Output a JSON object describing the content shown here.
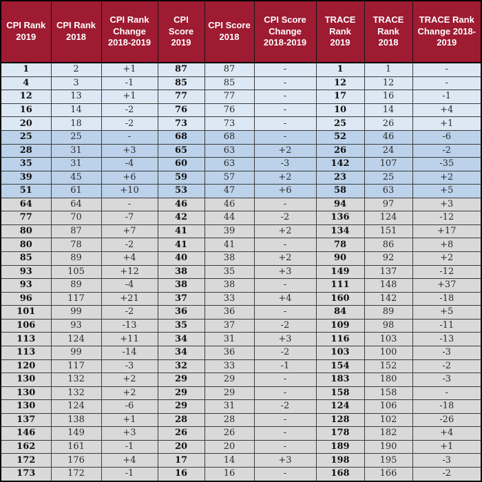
{
  "colors": {
    "header_bg": "#9e1b32",
    "header_text": "#ffffff",
    "band_blue_light": "#dce8f4",
    "band_blue_mid": "#bcd2ea",
    "band_gray": "#d9d9d9",
    "grid_border": "#3a3a3a",
    "outer_border": "#000000",
    "body_text": "#2a2a2a"
  },
  "chart_data": {
    "type": "table",
    "columns": [
      "CPI Rank 2019",
      "CPI Rank 2018",
      "CPI Rank Change 2018-2019",
      "CPI Score 2019",
      "CPI Score 2018",
      "CPI Score Change 2018-2019",
      "TRACE Rank 2019",
      "TRACE Rank 2018",
      "TRACE Rank Change 2018-2019"
    ],
    "rows": [
      [
        "1",
        "2",
        "+1",
        "87",
        "87",
        "-",
        "1",
        "1",
        "-"
      ],
      [
        "4",
        "3",
        "-1",
        "85",
        "85",
        "-",
        "12",
        "12",
        "-"
      ],
      [
        "12",
        "13",
        "+1",
        "77",
        "77",
        "-",
        "17",
        "16",
        "-1"
      ],
      [
        "16",
        "14",
        "-2",
        "76",
        "76",
        "-",
        "10",
        "14",
        "+4"
      ],
      [
        "20",
        "18",
        "-2",
        "73",
        "73",
        "-",
        "25",
        "26",
        "+1"
      ],
      [
        "25",
        "25",
        "-",
        "68",
        "68",
        "-",
        "52",
        "46",
        "-6"
      ],
      [
        "28",
        "31",
        "+3",
        "65",
        "63",
        "+2",
        "26",
        "24",
        "-2"
      ],
      [
        "35",
        "31",
        "-4",
        "60",
        "63",
        "-3",
        "142",
        "107",
        "-35"
      ],
      [
        "39",
        "45",
        "+6",
        "59",
        "57",
        "+2",
        "23",
        "25",
        "+2"
      ],
      [
        "51",
        "61",
        "+10",
        "53",
        "47",
        "+6",
        "58",
        "63",
        "+5"
      ],
      [
        "64",
        "64",
        "-",
        "46",
        "46",
        "-",
        "94",
        "97",
        "+3"
      ],
      [
        "77",
        "70",
        "-7",
        "42",
        "44",
        "-2",
        "136",
        "124",
        "-12"
      ],
      [
        "80",
        "87",
        "+7",
        "41",
        "39",
        "+2",
        "134",
        "151",
        "+17"
      ],
      [
        "80",
        "78",
        "-2",
        "41",
        "41",
        "-",
        "78",
        "86",
        "+8"
      ],
      [
        "85",
        "89",
        "+4",
        "40",
        "38",
        "+2",
        "90",
        "92",
        "+2"
      ],
      [
        "93",
        "105",
        "+12",
        "38",
        "35",
        "+3",
        "149",
        "137",
        "-12"
      ],
      [
        "93",
        "89",
        "-4",
        "38",
        "38",
        "-",
        "111",
        "148",
        "+37"
      ],
      [
        "96",
        "117",
        "+21",
        "37",
        "33",
        "+4",
        "160",
        "142",
        "-18"
      ],
      [
        "101",
        "99",
        "-2",
        "36",
        "36",
        "-",
        "84",
        "89",
        "+5"
      ],
      [
        "106",
        "93",
        "-13",
        "35",
        "37",
        "-2",
        "109",
        "98",
        "-11"
      ],
      [
        "113",
        "124",
        "+11",
        "34",
        "31",
        "+3",
        "116",
        "103",
        "-13"
      ],
      [
        "113",
        "99",
        "-14",
        "34",
        "36",
        "-2",
        "103",
        "100",
        "-3"
      ],
      [
        "120",
        "117",
        "-3",
        "32",
        "33",
        "-1",
        "154",
        "152",
        "-2"
      ],
      [
        "130",
        "132",
        "+2",
        "29",
        "29",
        "-",
        "183",
        "180",
        "-3"
      ],
      [
        "130",
        "132",
        "+2",
        "29",
        "29",
        "-",
        "158",
        "158",
        "-"
      ],
      [
        "130",
        "124",
        "-6",
        "29",
        "31",
        "-2",
        "124",
        "106",
        "-18"
      ],
      [
        "137",
        "138",
        "+1",
        "28",
        "28",
        "-",
        "128",
        "102",
        "-26"
      ],
      [
        "146",
        "149",
        "+3",
        "26",
        "26",
        "-",
        "178",
        "182",
        "+4"
      ],
      [
        "162",
        "161",
        "-1",
        "20",
        "20",
        "-",
        "189",
        "190",
        "+1"
      ],
      [
        "172",
        "176",
        "+4",
        "17",
        "14",
        "+3",
        "198",
        "195",
        "-3"
      ],
      [
        "173",
        "172",
        "-1",
        "16",
        "16",
        "-",
        "168",
        "166",
        "-2"
      ]
    ],
    "row_bands": [
      "blue-light",
      "blue-light",
      "blue-light",
      "blue-light",
      "blue-light",
      "blue-mid",
      "blue-mid",
      "blue-mid",
      "blue-mid",
      "blue-mid",
      "gray",
      "gray",
      "gray",
      "gray",
      "gray",
      "gray",
      "gray",
      "gray",
      "gray",
      "gray",
      "gray",
      "gray",
      "gray",
      "gray",
      "gray",
      "gray",
      "gray",
      "gray",
      "gray",
      "gray",
      "gray"
    ],
    "layout_hints": {
      "header_position": "top",
      "bold_columns": [
        1,
        4,
        7
      ],
      "grid": true
    }
  }
}
